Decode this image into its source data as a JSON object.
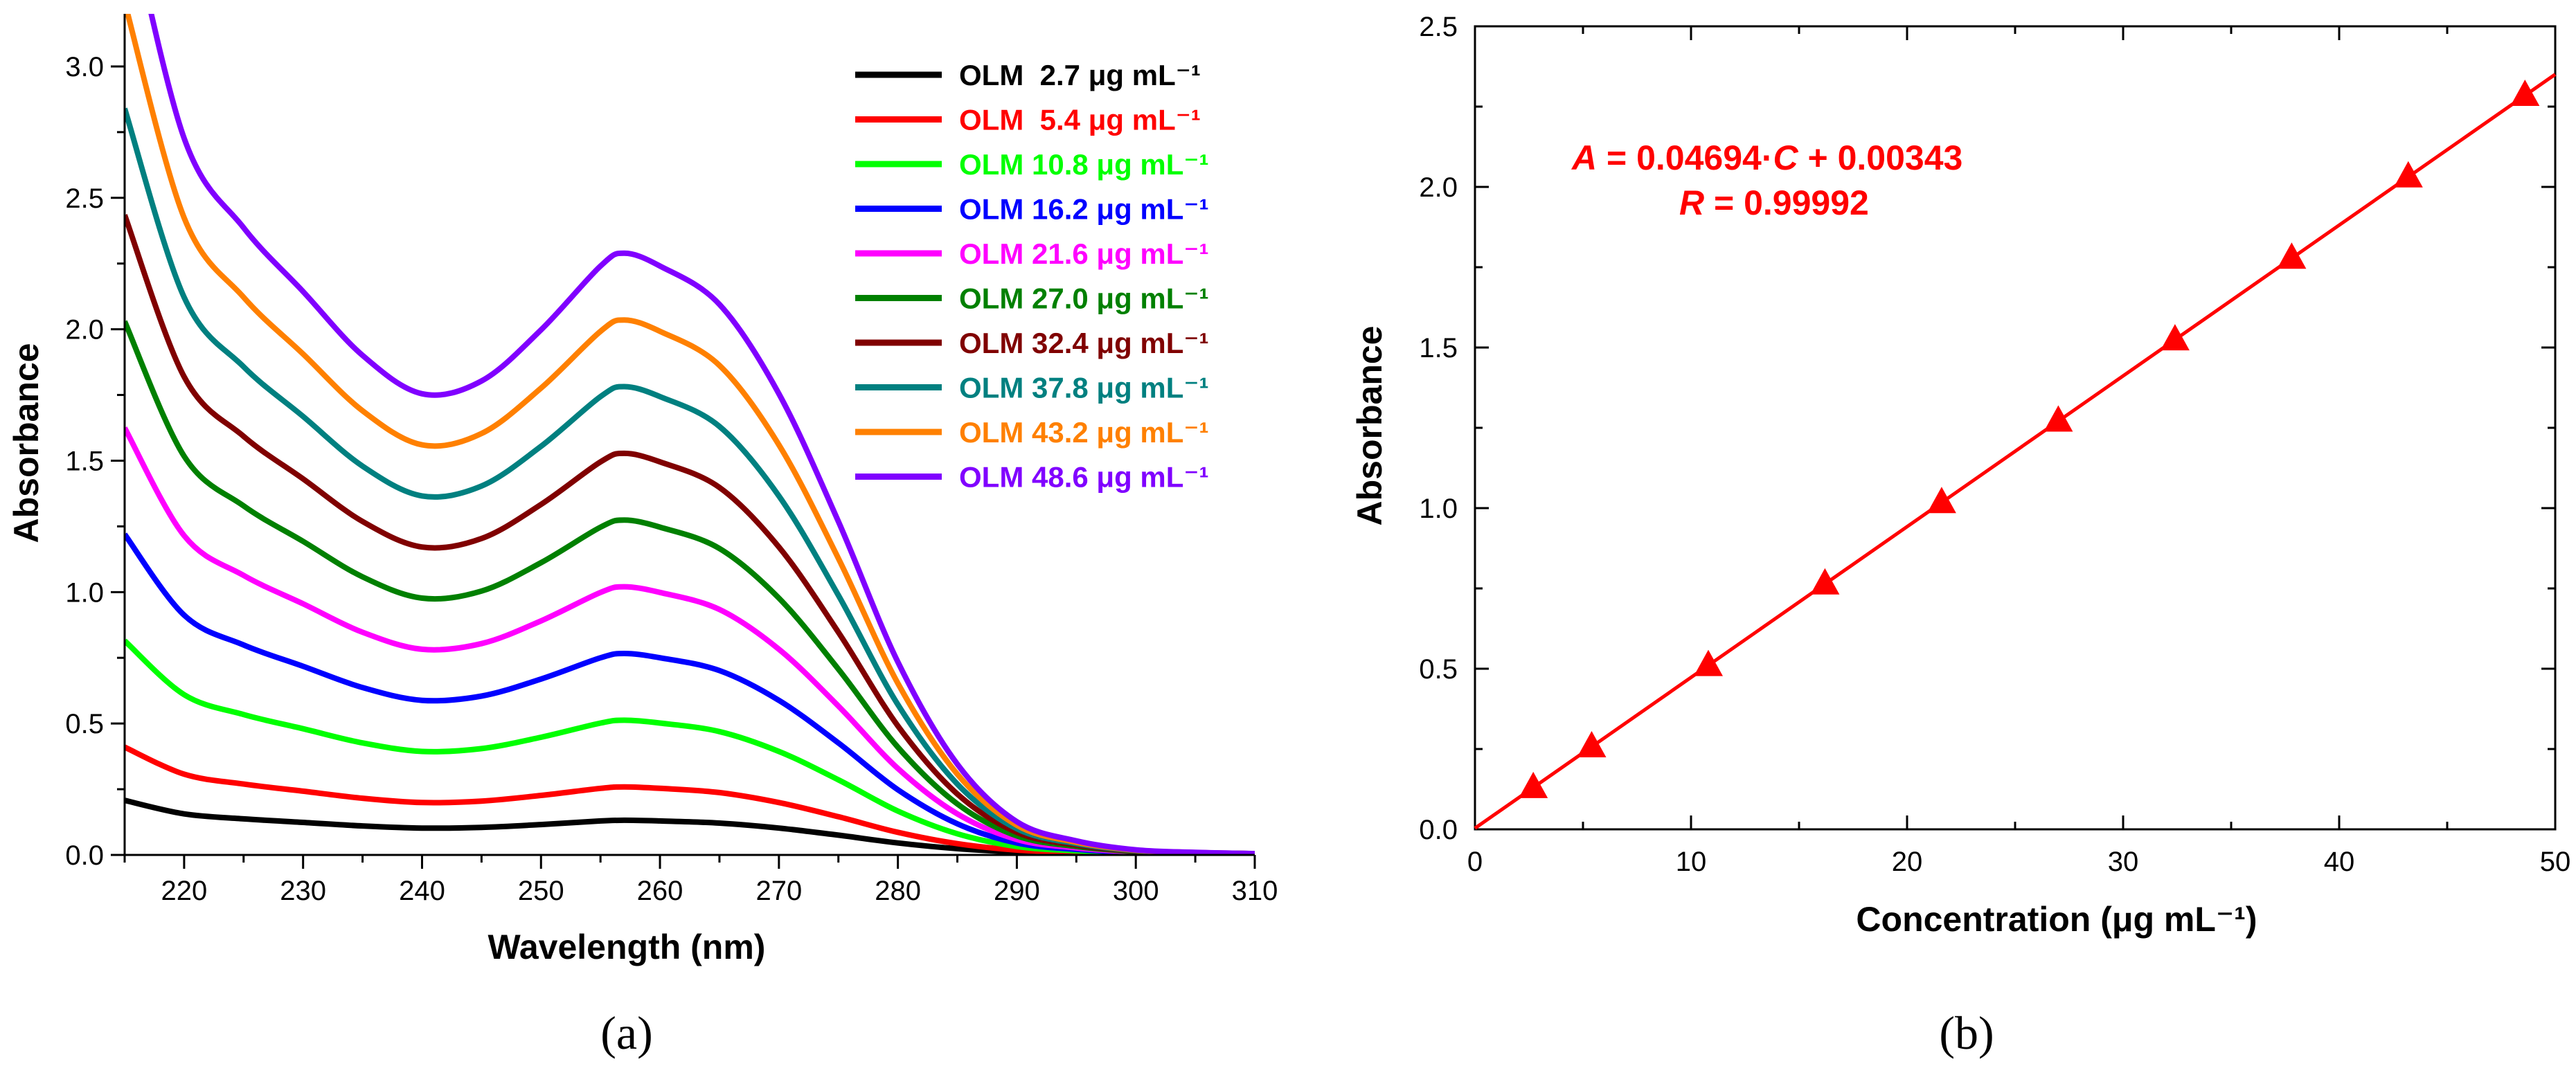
{
  "chart_data": [
    {
      "type": "line",
      "panel": "(a)",
      "xlabel": "Wavelength (nm)",
      "ylabel": "Absorbance",
      "xlim": [
        215,
        310
      ],
      "ylim": [
        0,
        3.2
      ],
      "xticks": [
        220,
        230,
        240,
        250,
        260,
        270,
        280,
        290,
        300,
        310
      ],
      "yticks": [
        0.0,
        0.5,
        1.0,
        1.5,
        2.0,
        2.5,
        3.0
      ],
      "x": [
        215,
        220,
        225,
        230,
        235,
        240,
        245,
        250,
        255,
        257,
        260,
        265,
        270,
        275,
        280,
        285,
        290,
        295,
        300,
        305,
        310
      ],
      "base_profile": [
        0.075,
        0.056,
        0.049,
        0.044,
        0.039,
        0.036,
        0.037,
        0.041,
        0.046,
        0.047,
        0.046,
        0.043,
        0.036,
        0.026,
        0.015,
        0.007,
        0.0025,
        0.001,
        0.0003,
        0.0001,
        0.0
      ],
      "series": [
        {
          "name": "OLM  2.7 μg mL⁻¹",
          "concentration": 2.7,
          "color": "#000000"
        },
        {
          "name": "OLM  5.4 μg mL⁻¹",
          "concentration": 5.4,
          "color": "#ff0000"
        },
        {
          "name": "OLM 10.8 μg mL⁻¹",
          "concentration": 10.8,
          "color": "#00ff00"
        },
        {
          "name": "OLM 16.2 μg mL⁻¹",
          "concentration": 16.2,
          "color": "#0000ff"
        },
        {
          "name": "OLM 21.6 μg mL⁻¹",
          "concentration": 21.6,
          "color": "#ff00ff"
        },
        {
          "name": "OLM 27.0 μg mL⁻¹",
          "concentration": 27.0,
          "color": "#008000"
        },
        {
          "name": "OLM 32.4 μg mL⁻¹",
          "concentration": 32.4,
          "color": "#800000"
        },
        {
          "name": "OLM 37.8 μg mL⁻¹",
          "concentration": 37.8,
          "color": "#008080"
        },
        {
          "name": "OLM 43.2 μg mL⁻¹",
          "concentration": 43.2,
          "color": "#ff8000"
        },
        {
          "name": "OLM 48.6 μg mL⁻¹",
          "concentration": 48.6,
          "color": "#8000ff"
        }
      ],
      "baseline_offset": 0.005,
      "legend_position": "top-right"
    },
    {
      "type": "scatter",
      "panel": "(b)",
      "xlabel": "Concentration (μg mL⁻¹)",
      "ylabel": "Absorbance",
      "xlim": [
        0,
        50
      ],
      "ylim": [
        0,
        2.5
      ],
      "xticks": [
        0,
        10,
        20,
        30,
        40,
        50
      ],
      "yticks": [
        0.0,
        0.5,
        1.0,
        1.5,
        2.0,
        2.5
      ],
      "x": [
        2.7,
        5.4,
        10.8,
        16.2,
        21.6,
        27.0,
        32.4,
        37.8,
        43.2,
        48.6
      ],
      "y": [
        0.13,
        0.257,
        0.51,
        0.764,
        1.017,
        1.271,
        1.524,
        1.778,
        2.031,
        2.285
      ],
      "fit_line": {
        "slope": 0.04694,
        "intercept": 0.00343,
        "x_range": [
          0,
          50
        ]
      },
      "equation": {
        "A": "A",
        "eq_mid": " = 0.04694·",
        "C": "C",
        "eq_end": " + 0.00343",
        "R": "R",
        "r_end": " = 0.99992"
      },
      "color": "#ff0000"
    }
  ]
}
